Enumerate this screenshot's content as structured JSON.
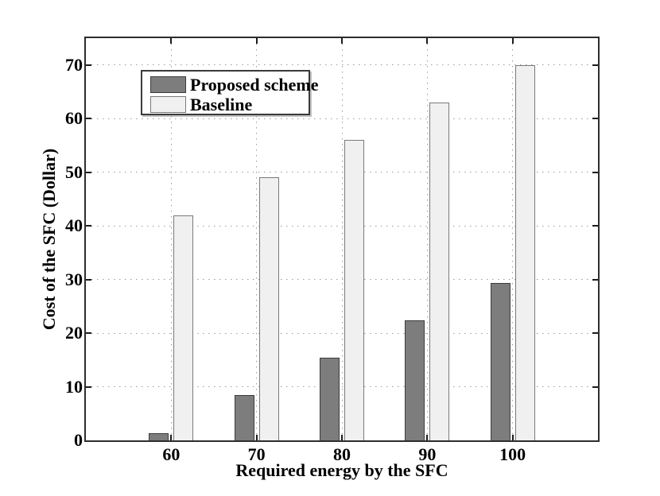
{
  "chart_data": {
    "type": "bar",
    "title": "",
    "xlabel": "Required energy by the SFC",
    "ylabel": "Cost of the SFC (Dollar)",
    "categories": [
      "60",
      "70",
      "80",
      "90",
      "100"
    ],
    "series": [
      {
        "name": "Proposed scheme",
        "values": [
          1.4,
          8.4,
          15.4,
          22.4,
          29.4
        ],
        "fill_color": "#7d7d7d",
        "edge_color": "#3c3c3c"
      },
      {
        "name": "Baseline",
        "values": [
          42,
          49,
          56,
          63,
          70
        ],
        "fill_color": "#f0f0f0",
        "edge_color": "#7a7a7a"
      }
    ],
    "ylim": [
      0,
      75
    ],
    "yticks": [
      0,
      10,
      20,
      30,
      40,
      50,
      60,
      70
    ],
    "grid": "dotted-both-axes",
    "legend_position": "upper-left-inside",
    "axis_color": "#2e2e2e",
    "grid_color": "#9d9d9d",
    "background_color": "#ffffff"
  }
}
